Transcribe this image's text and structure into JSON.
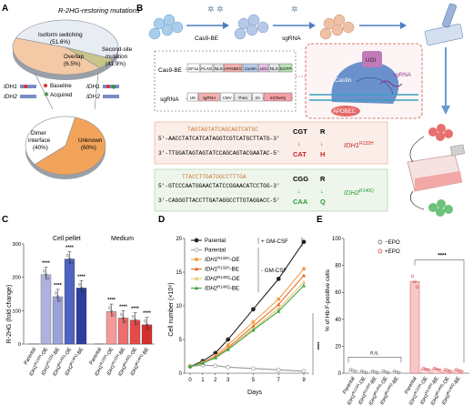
{
  "panels": {
    "A": {
      "letter": "A",
      "title": "R-2HG-restoring mutations",
      "isoform": "Isoform switching\n(51.6%)",
      "overlap": "Overlap\n(6.5%)",
      "second_site": "Second-site\nmutation\n(41.9%)",
      "idh1_left": "IDH1",
      "idh2_left": "IDH2",
      "baseline": "Baseline",
      "acquired": "Acquired",
      "idh1_right": "IDH1",
      "idh2_right": "IDH2",
      "dimer": "Dimer\ninterface\n(40%)",
      "unknown": "Unknown\n(60%)",
      "pie_top": [
        {
          "label": "Isoform switching",
          "value": 51.6,
          "color": "#e8ecf3"
        },
        {
          "label": "Overlap",
          "value": 6.5,
          "color": "#c8c48a"
        },
        {
          "label": "Second-site mutation",
          "value": 41.9,
          "color": "#f3c9a6"
        }
      ],
      "pie_bottom": [
        {
          "label": "Dimer interface",
          "value": 40,
          "color": "#ffffff"
        },
        {
          "label": "Unknown",
          "value": 60,
          "color": "#f2a35a"
        }
      ]
    },
    "B": {
      "letter": "B",
      "cas9be": "Cas9-BE",
      "sgrna": "sgRNA",
      "cas9be_construct": "Cas9-BE",
      "sgrna_construct": "sgRNA",
      "parts1": [
        "EF1α",
        "FLAG",
        "NLS",
        "APOBEC",
        "Cas9n",
        "UGI",
        "NLS",
        "EGFP"
      ],
      "parts2": [
        "U6",
        "sgRNA",
        "CMV",
        "Puro",
        "2A",
        "mCherry"
      ],
      "ugi": "UGI",
      "cas9n": "Cas9n",
      "sgrna_mol": "sgRNA",
      "apobec": "APOBEC",
      "idh1_guide": "TAGTAGTATCAGCAGTCATGC",
      "idh1_top": "5'-AACCTATCATCATAGGTCGTCATGCTTATG-3'",
      "idh1_bottom": "3'-TTGGATAGTAGTATCCAGCAGTACGAATAC-5'",
      "idh1_codon_wt": "CGT",
      "idh1_aa_wt": "R",
      "idh1_codon_mut": "CAT",
      "idh1_aa_mut": "H",
      "idh1_label": "IDH1",
      "idh1_sup": "R132H",
      "idh2_guide": "TTACCTTGATGGCCTTTGA",
      "idh2_top": "5'-GTCCCAATGGAACTATCCGGAACATCCTGG-3'",
      "idh2_bottom": "3'-CAGGGTTACCTTGATAGGCCTTGTAGGACC-5'",
      "idh2_codon_wt": "CGG",
      "idh2_aa_wt": "R",
      "idh2_codon_mut": "CAA",
      "idh2_aa_mut": "Q",
      "idh2_label": "IDH2",
      "idh2_sup": "R140Q"
    },
    "C": {
      "letter": "C",
      "ylabel": "R-2HG (fold change)",
      "section_pellet": "Cell pellet",
      "section_medium": "Medium",
      "stars": "****",
      "chart_data": {
        "type": "bar",
        "ylim": [
          0,
          300
        ],
        "yticks": [
          0,
          100,
          200,
          300
        ],
        "groups": [
          {
            "name": "Cell pellet",
            "categories": [
              "Parental",
              "IDH1R132H-OE",
              "IDH1R132H-BE",
              "IDH2R140Q-OE",
              "IDH2R140Q-BE"
            ],
            "values": [
              1,
              208,
              142,
              255,
              168
            ]
          },
          {
            "name": "Medium",
            "categories": [
              "Parental",
              "IDH1R132H-OE",
              "IDH1R132H-BE",
              "IDH2R140Q-OE",
              "IDH2R140Q-BE"
            ],
            "values": [
              1,
              98,
              78,
              72,
              58
            ]
          }
        ]
      }
    },
    "D": {
      "letter": "D",
      "xlabel": "Days",
      "ylabel": "Cell number (×10⁶)",
      "plus_gmcsf": "+ GM-CSF",
      "minus_gmcsf": "- GM-CSF",
      "stars": "****",
      "legend": [
        {
          "base": "Parental",
          "sup": ""
        },
        {
          "base": "Parental",
          "sup": ""
        },
        {
          "base": "IDH1",
          "sup": "R132H",
          "suffix": "-OE"
        },
        {
          "base": "IDH1",
          "sup": "R132H",
          "suffix": "-BE"
        },
        {
          "base": "IDH2",
          "sup": "R140Q",
          "suffix": "-OE"
        },
        {
          "base": "IDH2",
          "sup": "R140Q",
          "suffix": "-BE"
        }
      ],
      "chart_data": {
        "type": "line",
        "x": [
          0,
          1,
          2,
          3,
          5,
          7,
          9
        ],
        "xticks": [
          0,
          1,
          2,
          3,
          5,
          7,
          9
        ],
        "ylim": [
          0,
          20
        ],
        "yticks": [
          0,
          5,
          10,
          15,
          20
        ],
        "series": [
          {
            "name": "Parental + GM-CSF",
            "color": "#222222",
            "values": [
              1.0,
              1.8,
              3.0,
              5.0,
              9.5,
              14.0,
              19.5
            ]
          },
          {
            "name": "Parental - GM-CSF",
            "color": "#9a9a9a",
            "values": [
              1.0,
              1.2,
              1.1,
              0.9,
              0.7,
              0.5,
              0.3
            ]
          },
          {
            "name": "IDH1 R132H-OE",
            "color": "#f0a04a",
            "values": [
              1.0,
              1.6,
              2.6,
              4.2,
              7.6,
              11.0,
              15.5
            ]
          },
          {
            "name": "IDH1 R132H-BE",
            "color": "#e86a2a",
            "values": [
              1.0,
              1.5,
              2.4,
              3.8,
              7.0,
              10.2,
              14.5
            ]
          },
          {
            "name": "IDH2 R140Q-OE",
            "color": "#e8c86a",
            "values": [
              1.0,
              1.5,
              2.3,
              3.6,
              6.6,
              9.6,
              13.5
            ]
          },
          {
            "name": "IDH2 R140Q-BE",
            "color": "#3aa64a",
            "values": [
              1.0,
              1.5,
              2.3,
              3.5,
              6.4,
              9.2,
              13.0
            ]
          }
        ]
      }
    },
    "E": {
      "letter": "E",
      "ylabel": "% of Hb F-positive cells",
      "legend_minus": "−EPO",
      "legend_plus": "+EPO",
      "ns": "n.s.",
      "stars": "****",
      "chart_data": {
        "type": "bar",
        "ylim": [
          0,
          100
        ],
        "yticks": [
          0,
          20,
          40,
          60,
          80,
          100
        ],
        "groups": [
          {
            "name": "−EPO",
            "categories": [
              "Parental",
              "IDH1R132H-OE",
              "IDH1R132H-BE",
              "IDH2R140Q-OE",
              "IDH2R140Q-BE"
            ],
            "values": [
              2,
              1,
              1,
              1,
              1
            ]
          },
          {
            "name": "+EPO",
            "categories": [
              "Parental",
              "IDH1R132H-OE",
              "IDH1R132H-BE",
              "IDH2R140Q-OE",
              "IDH2R140Q-BE"
            ],
            "values": [
              68,
              3,
              3,
              2,
              2
            ]
          }
        ]
      }
    }
  },
  "x_categories": [
    {
      "base": "Parental",
      "sup": "",
      "suffix": ""
    },
    {
      "base": "IDH1",
      "sup": "R132H",
      "suffix": "-OE"
    },
    {
      "base": "IDH1",
      "sup": "R132H",
      "suffix": "-BE"
    },
    {
      "base": "IDH2",
      "sup": "R140Q",
      "suffix": "-OE"
    },
    {
      "base": "IDH2",
      "sup": "R140Q",
      "suffix": "-BE"
    }
  ]
}
